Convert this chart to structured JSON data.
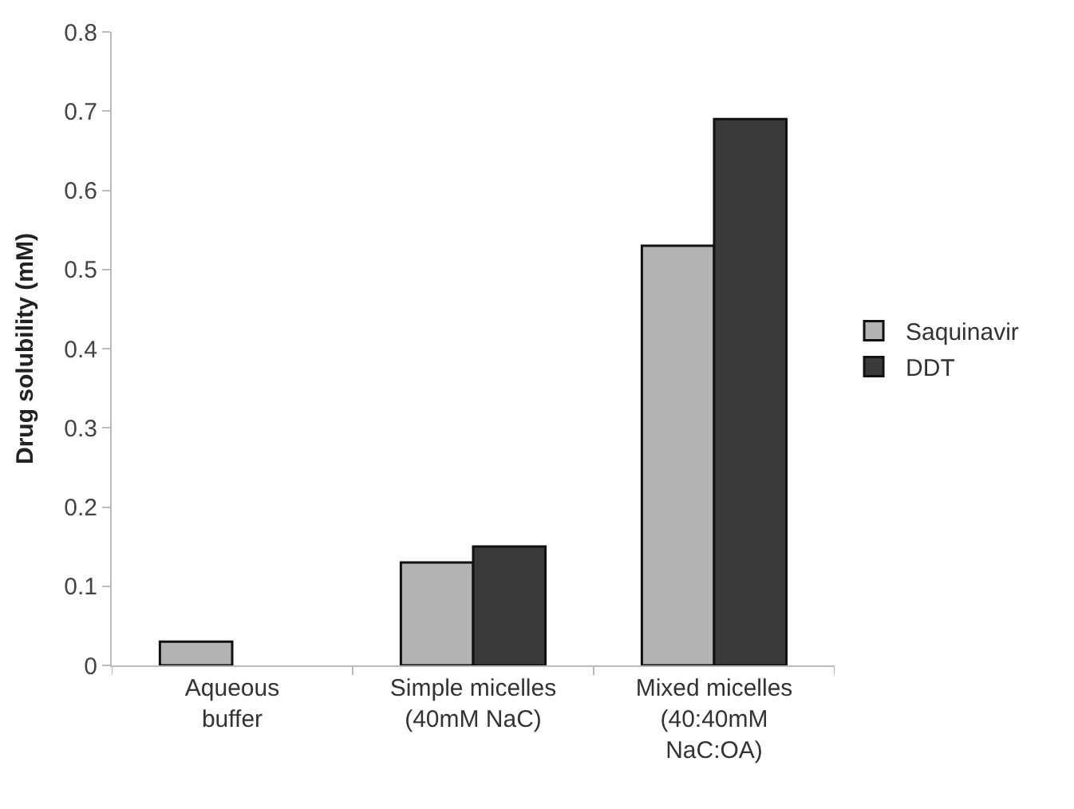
{
  "chart_data": {
    "type": "bar",
    "ylabel": "Drug solubility (mM)",
    "categories": [
      "Aqueous\nbuffer",
      "Simple micelles\n(40mM NaC)",
      "Mixed micelles\n(40:40mM\nNaC:OA)"
    ],
    "series": [
      {
        "name": "Saquinavir",
        "color": "#b4b4b4",
        "values": [
          0.03,
          0.13,
          0.53
        ]
      },
      {
        "name": "DDT",
        "color": "#3a3a3a",
        "values": [
          null,
          0.15,
          0.69
        ]
      }
    ],
    "ylim": [
      0,
      0.8
    ],
    "yticks": [
      0,
      0.1,
      0.2,
      0.3,
      0.4,
      0.5,
      0.6,
      0.7,
      0.8
    ],
    "legend": "right"
  }
}
